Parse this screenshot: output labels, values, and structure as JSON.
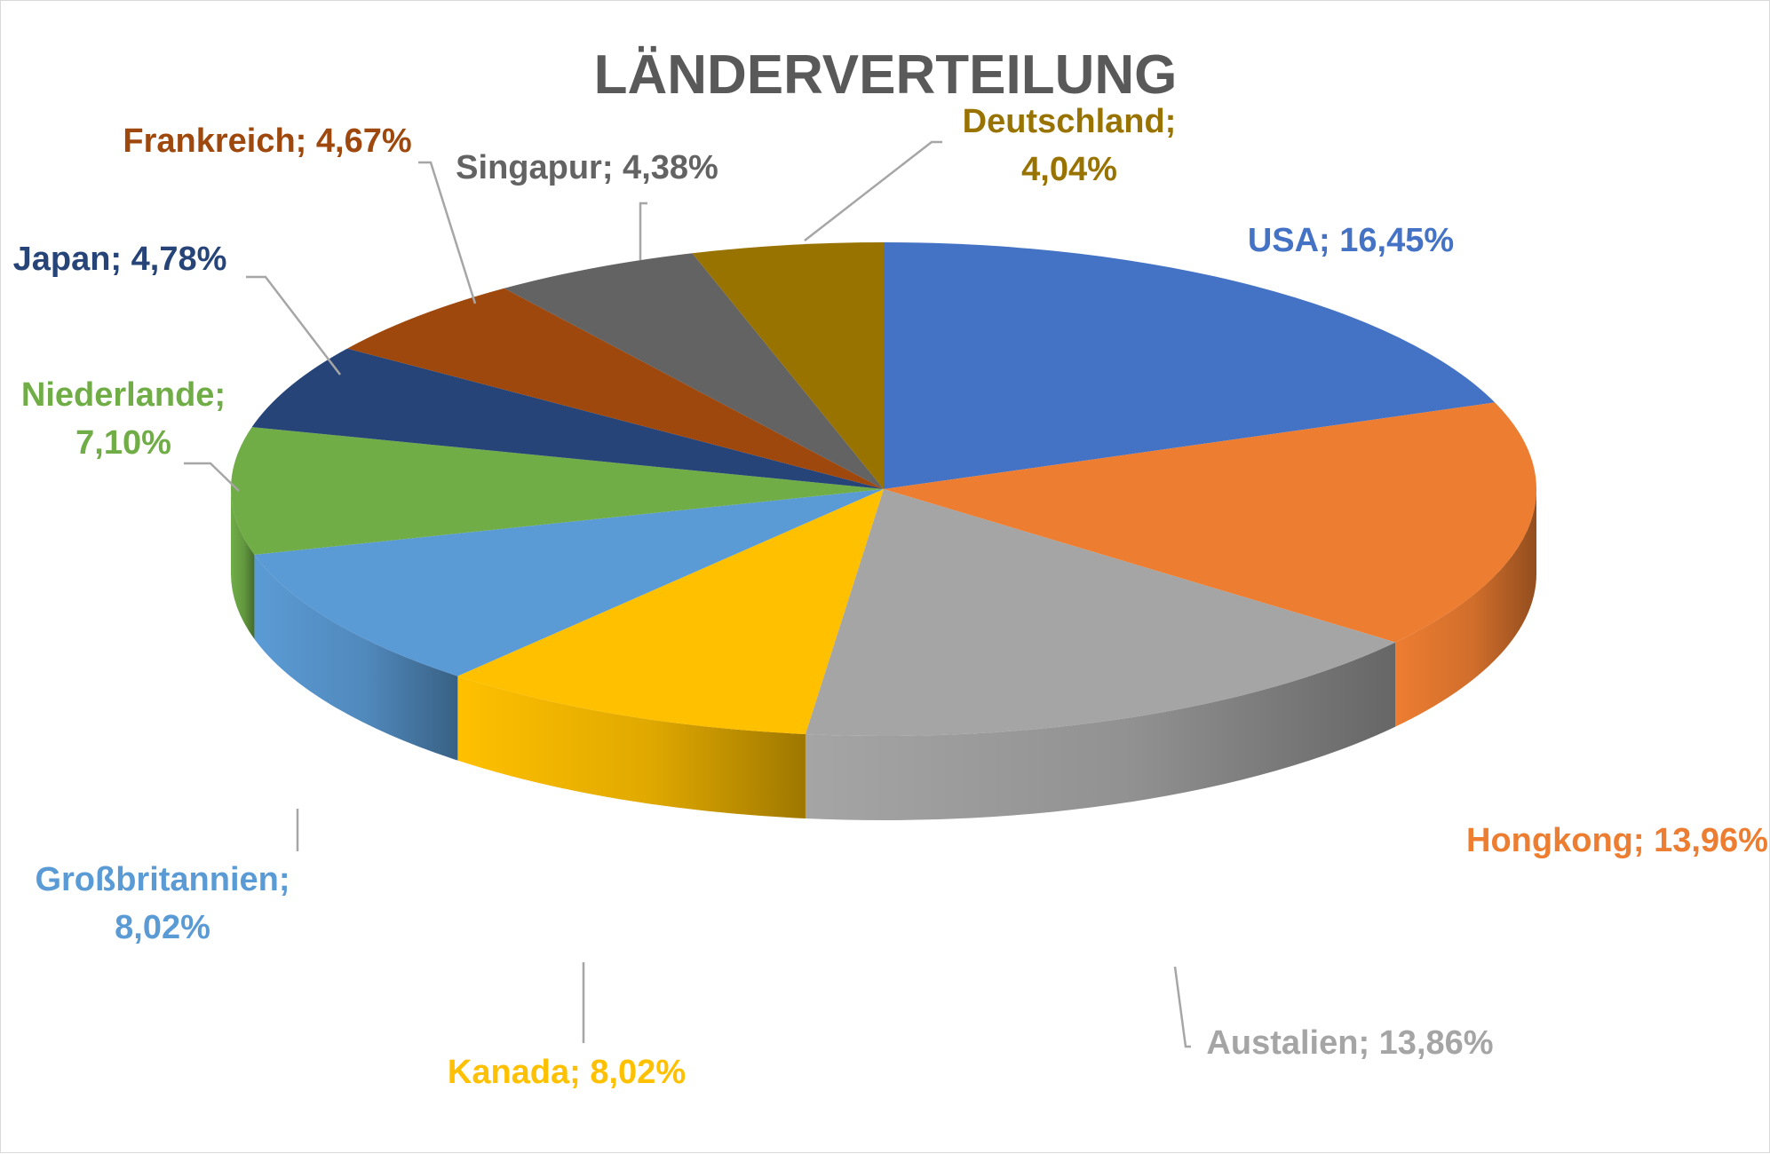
{
  "chart_data": {
    "type": "pie",
    "title": "LÄNDERVERTEILUNG",
    "categories": [
      "USA",
      "Hongkong",
      "Austalien",
      "Kanada",
      "Großbritannien",
      "Niederlande",
      "Japan",
      "Frankreich",
      "Singapur",
      "Deutschland"
    ],
    "values": [
      16.45,
      13.96,
      13.86,
      8.02,
      8.02,
      7.1,
      4.78,
      4.67,
      4.38,
      4.04
    ],
    "value_labels": [
      "16,45%",
      "13,96%",
      "13,86%",
      "8,02%",
      "8,02%",
      "7,10%",
      "4,78%",
      "4,67%",
      "4,38%",
      "4,04%"
    ],
    "data_labels": [
      [
        "USA; 16,45%"
      ],
      [
        "Hongkong; 13,96%"
      ],
      [
        "Austalien; 13,86%"
      ],
      [
        "Kanada; 8,02%"
      ],
      [
        "Großbritannien;",
        "8,02%"
      ],
      [
        "Niederlande;",
        "7,10%"
      ],
      [
        "Japan; 4,78%"
      ],
      [
        "Frankreich; 4,67%"
      ],
      [
        "Singapur; 4,38%"
      ],
      [
        "Deutschland;",
        "4,04%"
      ]
    ],
    "colors": [
      "#4472C4",
      "#ED7D31",
      "#A5A5A5",
      "#FFC000",
      "#5B9BD5",
      "#70AD47",
      "#264478",
      "#9E480E",
      "#636363",
      "#997300"
    ],
    "label_colors": [
      "#4472C4",
      "#ED7D31",
      "#A5A5A5",
      "#FFC000",
      "#5B9BD5",
      "#70AD47",
      "#264478",
      "#9E480E",
      "#636363",
      "#997300"
    ],
    "style": "3d",
    "start_angle_deg": 0,
    "direction": "clockwise",
    "legend": "none"
  }
}
